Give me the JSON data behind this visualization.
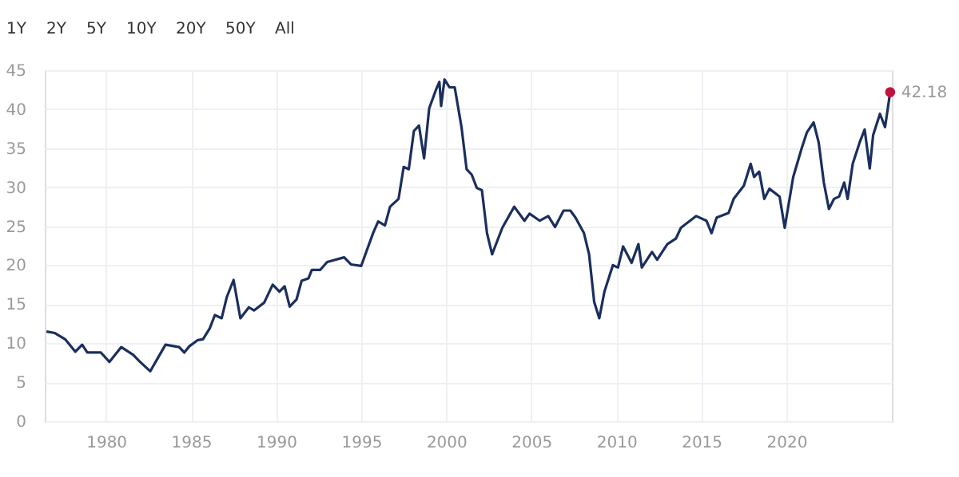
{
  "chart_data": {
    "type": "line",
    "annotations": [
      "1Y",
      "2Y",
      "5Y",
      "10Y",
      "20Y",
      "50Y",
      "All"
    ],
    "xlim": [
      1976.4,
      2026.2
    ],
    "xticks": [
      1980,
      1985,
      1990,
      1995,
      2000,
      2005,
      2010,
      2015,
      2020
    ],
    "ylim": [
      0,
      45
    ],
    "yticks": [
      0,
      5,
      10,
      15,
      20,
      25,
      30,
      35,
      40,
      45
    ],
    "grid": true,
    "line_style": "solid",
    "series": [
      {
        "color": "#1b2f5e",
        "x": [
          1976.5,
          1977.0,
          1977.6,
          1978.2,
          1978.6,
          1978.9,
          1979.7,
          1980.2,
          1980.9,
          1981.6,
          1982.0,
          1982.6,
          1983.1,
          1983.5,
          1984.3,
          1984.6,
          1984.9,
          1985.4,
          1985.7,
          1986.1,
          1986.4,
          1986.8,
          1987.1,
          1987.5,
          1987.9,
          1988.4,
          1988.7,
          1989.3,
          1989.8,
          1990.2,
          1990.5,
          1990.8,
          1991.2,
          1991.5,
          1991.9,
          1992.1,
          1992.6,
          1993.0,
          1994.0,
          1994.4,
          1995.0,
          1995.7,
          1996.0,
          1996.4,
          1996.7,
          1997.2,
          1997.5,
          1997.8,
          1998.1,
          1998.4,
          1998.7,
          1999.0,
          1999.4,
          1999.6,
          1999.7,
          1999.9,
          2000.2,
          2000.5,
          2000.9,
          2001.2,
          2001.5,
          2001.8,
          2002.1,
          2002.4,
          2002.7,
          2003.3,
          2004.0,
          2004.6,
          2004.9,
          2005.5,
          2006.0,
          2006.4,
          2006.9,
          2007.3,
          2007.6,
          2008.1,
          2008.4,
          2008.7,
          2009.0,
          2009.3,
          2009.8,
          2010.1,
          2010.4,
          2010.9,
          2011.3,
          2011.5,
          2012.1,
          2012.4,
          2013.0,
          2013.5,
          2013.8,
          2014.7,
          2015.3,
          2015.6,
          2015.9,
          2016.6,
          2016.9,
          2017.5,
          2017.9,
          2018.1,
          2018.4,
          2018.7,
          2019.0,
          2019.6,
          2019.9,
          2020.4,
          2020.9,
          2021.2,
          2021.6,
          2021.9,
          2022.2,
          2022.5,
          2022.8,
          2023.1,
          2023.4,
          2023.6,
          2023.9,
          2024.3,
          2024.6,
          2024.9,
          2025.1,
          2025.5,
          2025.8,
          2026.1
        ],
        "values": [
          11.5,
          11.3,
          10.5,
          8.9,
          9.8,
          8.8,
          8.8,
          7.6,
          9.5,
          8.5,
          7.6,
          6.4,
          8.3,
          9.8,
          9.5,
          8.8,
          9.6,
          10.4,
          10.5,
          11.9,
          13.6,
          13.2,
          15.9,
          18.1,
          13.2,
          14.6,
          14.2,
          15.2,
          17.5,
          16.6,
          17.3,
          14.7,
          15.6,
          18.0,
          18.3,
          19.4,
          19.4,
          20.4,
          21.0,
          20.1,
          19.9,
          24.1,
          25.6,
          25.1,
          27.5,
          28.5,
          32.6,
          32.3,
          37.2,
          37.9,
          33.7,
          40.1,
          42.5,
          43.5,
          40.4,
          43.8,
          42.8,
          42.8,
          37.7,
          32.3,
          31.6,
          29.9,
          29.6,
          24.1,
          21.4,
          24.8,
          27.5,
          25.7,
          26.6,
          25.7,
          26.3,
          24.9,
          27.0,
          27.0,
          26.1,
          24.1,
          21.4,
          15.3,
          13.2,
          16.6,
          20.0,
          19.7,
          22.4,
          20.3,
          22.7,
          19.7,
          21.7,
          20.7,
          22.7,
          23.4,
          24.8,
          26.3,
          25.7,
          24.1,
          26.1,
          26.7,
          28.5,
          30.2,
          33.0,
          31.3,
          32.0,
          28.5,
          29.8,
          28.8,
          24.8,
          31.3,
          35.0,
          37.0,
          38.3,
          35.7,
          30.6,
          27.2,
          28.5,
          28.8,
          30.6,
          28.5,
          33.0,
          35.7,
          37.4,
          32.4,
          36.7,
          39.4,
          37.7,
          42.18
        ]
      },
      {
        "type": "scatter",
        "color": "#c0143c",
        "x": [
          2026.1
        ],
        "values": [
          42.18
        ],
        "value_labels": [
          "42.18"
        ]
      }
    ]
  }
}
